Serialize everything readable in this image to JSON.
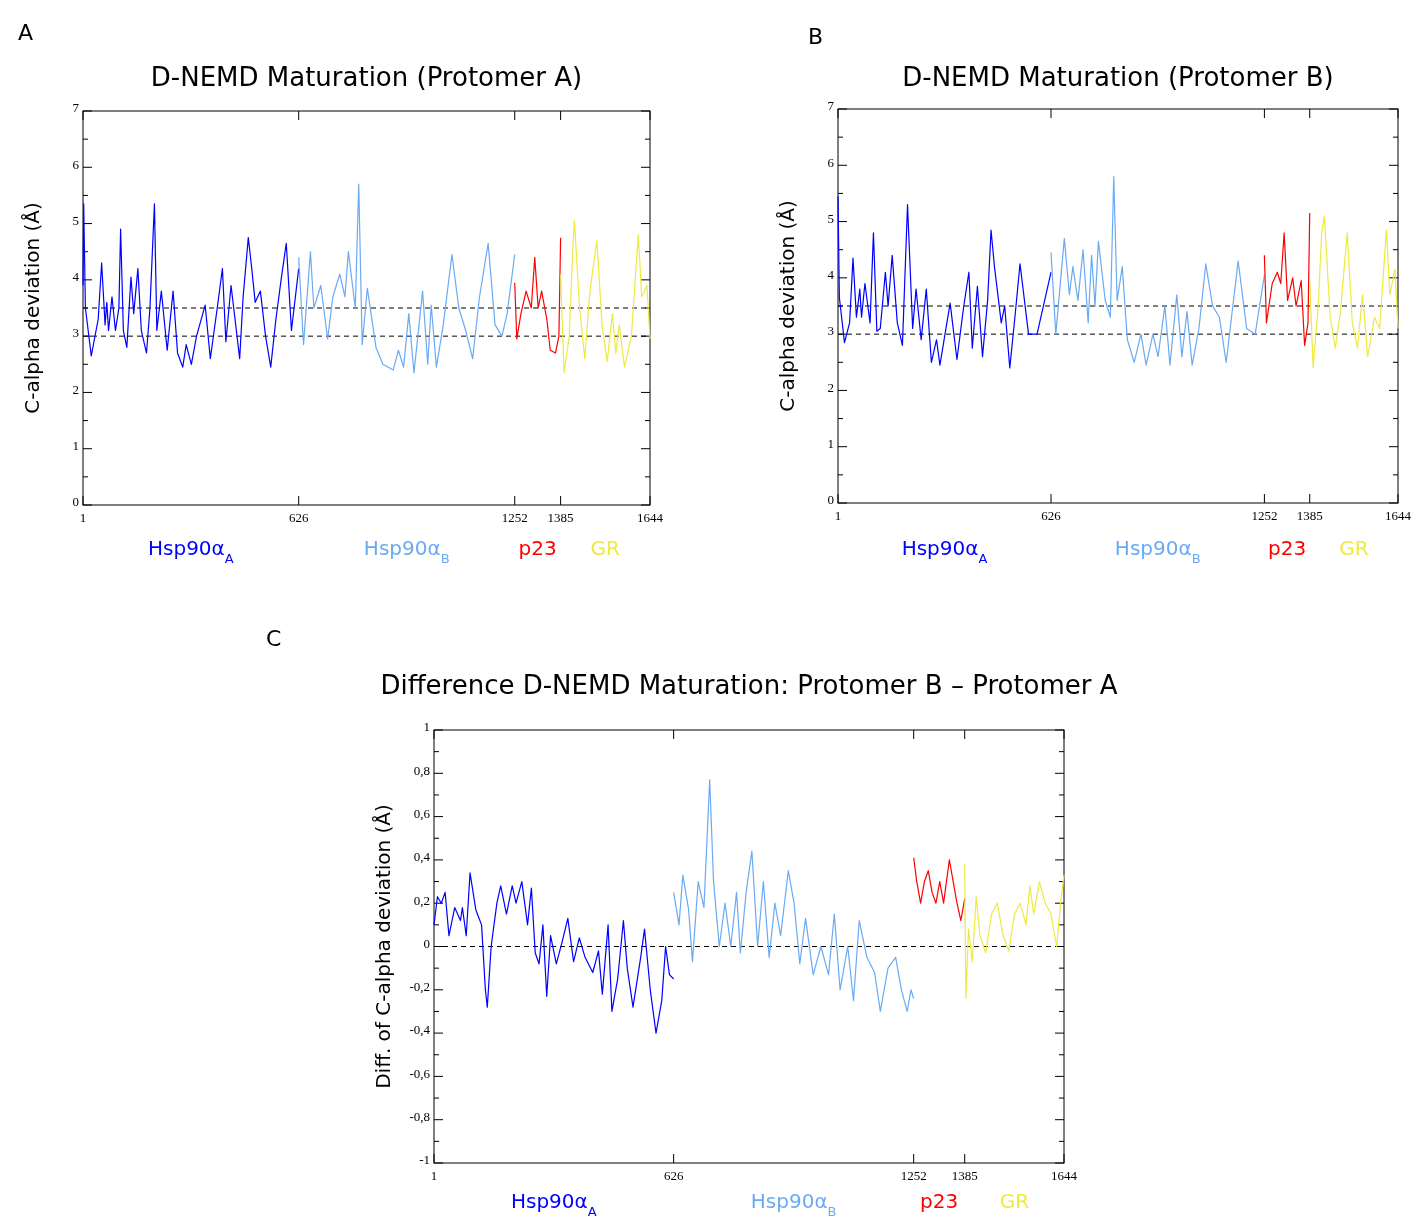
{
  "chart_data": [
    {
      "type": "line",
      "title": "D-NEMD Maturation (Protomer A)",
      "ylabel": "C-alpha deviation (Å)",
      "annotations": [
        "A"
      ],
      "legend": "bottom",
      "xlim": [
        1,
        1644
      ],
      "xticks": [
        1,
        626,
        1252,
        1385,
        1644
      ],
      "ylim": [
        0,
        7
      ],
      "yticks": [
        0,
        {
          "value": 0.5,
          "label": null
        },
        1,
        {
          "value": 1.5,
          "label": null
        },
        2,
        {
          "value": 2.5,
          "label": null
        },
        3,
        {
          "value": 3.5,
          "label": null
        },
        4,
        {
          "value": 4.5,
          "label": null
        },
        5,
        {
          "value": 5.5,
          "label": null
        },
        6,
        {
          "value": 6.5,
          "label": null
        },
        7
      ],
      "ref_lines": [
        {
          "axis": "y",
          "value": 3,
          "color": "#000000",
          "line_style": "dashed"
        },
        {
          "axis": "y",
          "value": 3.5,
          "color": "#000000",
          "line_style": "dashed"
        }
      ],
      "series": [
        {
          "name": "Hsp90α$_{A}$",
          "color": "#0000ff",
          "x": [
            1,
            3,
            8,
            25,
            45,
            55,
            65,
            70,
            75,
            85,
            95,
            105,
            110,
            118,
            128,
            140,
            148,
            160,
            170,
            185,
            195,
            208,
            215,
            228,
            245,
            262,
            275,
            290,
            300,
            315,
            330,
            355,
            370,
            390,
            405,
            415,
            430,
            455,
            465,
            480,
            490,
            500,
            515,
            530,
            545,
            560,
            575,
            590,
            605,
            626
          ],
          "values": [
            3.9,
            5.35,
            3.5,
            2.65,
            3.3,
            4.3,
            3.2,
            3.6,
            3.1,
            3.7,
            3.1,
            3.5,
            4.9,
            3.1,
            2.8,
            4.05,
            3.4,
            4.2,
            3.1,
            2.7,
            3.5,
            5.35,
            3.1,
            3.8,
            2.75,
            3.8,
            2.7,
            2.45,
            2.85,
            2.5,
            3.0,
            3.55,
            2.6,
            3.5,
            4.2,
            2.9,
            3.9,
            2.6,
            3.7,
            4.75,
            4.2,
            3.6,
            3.8,
            3.0,
            2.45,
            3.3,
            4.0,
            4.65,
            3.1,
            4.2
          ]
        },
        {
          "name": "Hsp90α$_{B}$",
          "color": "#6aaaf5",
          "x": [
            626,
            640,
            660,
            670,
            690,
            710,
            725,
            745,
            760,
            770,
            790,
            800,
            810,
            825,
            850,
            870,
            900,
            915,
            930,
            945,
            960,
            985,
            1000,
            1010,
            1025,
            1045,
            1070,
            1090,
            1110,
            1130,
            1150,
            1175,
            1195,
            1215,
            1230,
            1252
          ],
          "values": [
            4.4,
            2.85,
            4.5,
            3.5,
            3.9,
            2.95,
            3.7,
            4.1,
            3.7,
            4.5,
            3.5,
            5.7,
            2.85,
            3.85,
            2.8,
            2.5,
            2.4,
            2.75,
            2.45,
            3.4,
            2.35,
            3.8,
            2.5,
            3.55,
            2.45,
            3.2,
            4.45,
            3.5,
            3.1,
            2.6,
            3.7,
            4.65,
            3.2,
            3.0,
            3.4,
            4.45
          ]
        },
        {
          "name": "p23",
          "color": "#ff0000",
          "x": [
            1252,
            1258,
            1270,
            1285,
            1300,
            1310,
            1320,
            1330,
            1345,
            1355,
            1370,
            1380,
            1385
          ],
          "values": [
            3.95,
            2.95,
            3.4,
            3.8,
            3.5,
            4.4,
            3.5,
            3.8,
            3.3,
            2.75,
            2.7,
            3.0,
            4.75
          ]
        },
        {
          "name": "GR",
          "color": "#eeea40",
          "x": [
            1385,
            1395,
            1410,
            1420,
            1425,
            1440,
            1455,
            1470,
            1490,
            1505,
            1520,
            1535,
            1545,
            1555,
            1570,
            1590,
            1610,
            1620,
            1635,
            1644
          ],
          "values": [
            4.1,
            2.35,
            3.0,
            4.5,
            5.05,
            3.5,
            2.6,
            3.8,
            4.7,
            3.2,
            2.55,
            3.4,
            2.7,
            3.2,
            2.45,
            3.0,
            4.8,
            3.7,
            3.9,
            2.95
          ]
        }
      ]
    },
    {
      "type": "line",
      "title": "D-NEMD Maturation (Protomer B)",
      "ylabel": "C-alpha deviation (Å)",
      "annotations": [
        "B"
      ],
      "legend": "bottom",
      "xlim": [
        1,
        1644
      ],
      "xticks": [
        1,
        626,
        1252,
        1385,
        1644
      ],
      "ylim": [
        0,
        7
      ],
      "yticks": [
        0,
        {
          "value": 0.5,
          "label": null
        },
        1,
        {
          "value": 1.5,
          "label": null
        },
        2,
        {
          "value": 2.5,
          "label": null
        },
        3,
        {
          "value": 3.5,
          "label": null
        },
        4,
        {
          "value": 4.5,
          "label": null
        },
        5,
        {
          "value": 5.5,
          "label": null
        },
        6,
        {
          "value": 6.5,
          "label": null
        },
        7
      ],
      "ref_lines": [
        {
          "axis": "y",
          "value": 3,
          "color": "#000000",
          "line_style": "dashed"
        },
        {
          "axis": "y",
          "value": 3.5,
          "color": "#000000",
          "line_style": "dashed"
        }
      ],
      "series": [
        {
          "name": "Hsp90α$_{A}$",
          "color": "#0000ff",
          "x": [
            1,
            5,
            20,
            35,
            45,
            55,
            65,
            70,
            80,
            95,
            105,
            115,
            125,
            140,
            148,
            160,
            175,
            190,
            205,
            220,
            230,
            245,
            260,
            275,
            290,
            300,
            315,
            330,
            350,
            370,
            385,
            395,
            410,
            425,
            440,
            450,
            460,
            480,
            490,
            505,
            520,
            535,
            560,
            585,
            626
          ],
          "values": [
            5.45,
            3.65,
            2.85,
            3.2,
            4.35,
            3.3,
            3.8,
            3.3,
            3.9,
            3.2,
            4.8,
            3.05,
            3.1,
            4.1,
            3.5,
            4.4,
            3.2,
            2.8,
            5.3,
            3.1,
            3.8,
            2.9,
            3.8,
            2.5,
            2.9,
            2.45,
            3.0,
            3.55,
            2.55,
            3.5,
            4.1,
            2.75,
            3.85,
            2.6,
            3.6,
            4.85,
            4.2,
            3.2,
            3.5,
            2.4,
            3.3,
            4.25,
            3.0,
            3.0,
            4.1
          ]
        },
        {
          "name": "Hsp90α$_{B}$",
          "color": "#6aaaf5",
          "x": [
            626,
            640,
            665,
            680,
            690,
            705,
            720,
            735,
            745,
            755,
            765,
            785,
            800,
            810,
            820,
            835,
            850,
            870,
            890,
            905,
            925,
            940,
            960,
            975,
            995,
            1010,
            1025,
            1040,
            1060,
            1080,
            1100,
            1120,
            1140,
            1175,
            1200,
            1225,
            1252
          ],
          "values": [
            4.45,
            3.0,
            4.7,
            3.7,
            4.2,
            3.6,
            4.5,
            3.2,
            4.4,
            3.5,
            4.65,
            3.6,
            3.3,
            5.8,
            3.6,
            4.2,
            2.9,
            2.5,
            3.0,
            2.45,
            3.0,
            2.6,
            3.5,
            2.45,
            3.7,
            2.6,
            3.4,
            2.45,
            3.1,
            4.25,
            3.5,
            3.3,
            2.5,
            4.3,
            3.1,
            3.0,
            4.05
          ]
        },
        {
          "name": "p23",
          "color": "#ff0000",
          "x": [
            1252,
            1258,
            1275,
            1290,
            1300,
            1310,
            1320,
            1335,
            1345,
            1360,
            1370,
            1380,
            1385
          ],
          "values": [
            4.4,
            3.2,
            3.9,
            4.1,
            3.9,
            4.8,
            3.6,
            4.0,
            3.5,
            3.95,
            2.8,
            3.2,
            5.15
          ]
        },
        {
          "name": "GR",
          "color": "#eeea40",
          "x": [
            1385,
            1395,
            1410,
            1420,
            1428,
            1445,
            1460,
            1475,
            1495,
            1510,
            1525,
            1540,
            1555,
            1575,
            1590,
            1610,
            1620,
            1635,
            1644
          ],
          "values": [
            3.95,
            2.4,
            3.5,
            4.8,
            5.1,
            3.3,
            2.75,
            3.4,
            4.8,
            3.2,
            2.75,
            3.7,
            2.6,
            3.3,
            3.1,
            4.85,
            3.7,
            4.15,
            3.1
          ]
        }
      ]
    },
    {
      "type": "line",
      "title": "Difference D-NEMD Maturation: Protomer B – Protomer A",
      "ylabel": "Diff. of C-alpha deviation (Å)",
      "annotations": [
        "C"
      ],
      "legend": "bottom",
      "xlim": [
        1,
        1644
      ],
      "xticks": [
        1,
        626,
        1252,
        1385,
        1644
      ],
      "ylim": [
        -1,
        1
      ],
      "yticks": [
        {
          "value": -1,
          "label": "-1"
        },
        {
          "value": -0.9,
          "label": null
        },
        {
          "value": -0.8,
          "label": "-0,8"
        },
        {
          "value": -0.7,
          "label": null
        },
        {
          "value": -0.6,
          "label": "-0,6"
        },
        {
          "value": -0.5,
          "label": null
        },
        {
          "value": -0.4,
          "label": "-0,4"
        },
        {
          "value": -0.3,
          "label": null
        },
        {
          "value": -0.2,
          "label": "-0,2"
        },
        {
          "value": -0.1,
          "label": null
        },
        0,
        {
          "value": 0.1,
          "label": null
        },
        {
          "value": 0.2,
          "label": "0,2"
        },
        {
          "value": 0.3,
          "label": null
        },
        {
          "value": 0.4,
          "label": "0,4"
        },
        {
          "value": 0.5,
          "label": null
        },
        {
          "value": 0.6,
          "label": "0,6"
        },
        {
          "value": 0.7,
          "label": null
        },
        {
          "value": 0.8,
          "label": "0,8"
        },
        {
          "value": 0.9,
          "label": null
        },
        1
      ],
      "ref_lines": [
        {
          "axis": "y",
          "value": 0,
          "color": "#000000",
          "line_style": "dashed"
        }
      ],
      "series": [
        {
          "name": "Hsp90α$_{A}$",
          "color": "#0000ff",
          "x": [
            1,
            10,
            20,
            30,
            40,
            55,
            70,
            75,
            85,
            95,
            110,
            125,
            135,
            140,
            150,
            165,
            175,
            190,
            205,
            215,
            230,
            245,
            255,
            265,
            275,
            285,
            295,
            305,
            320,
            335,
            350,
            365,
            380,
            395,
            415,
            430,
            440,
            455,
            465,
            480,
            495,
            505,
            520,
            540,
            550,
            565,
            580,
            595,
            605,
            615,
            626
          ],
          "values": [
            0.1,
            0.23,
            0.2,
            0.25,
            0.05,
            0.18,
            0.12,
            0.18,
            0.05,
            0.34,
            0.17,
            0.1,
            -0.2,
            -0.28,
            0.0,
            0.2,
            0.28,
            0.15,
            0.28,
            0.2,
            0.3,
            0.1,
            0.27,
            -0.03,
            -0.08,
            0.1,
            -0.23,
            0.05,
            -0.08,
            0.02,
            0.13,
            -0.07,
            0.04,
            -0.05,
            -0.12,
            -0.02,
            -0.22,
            0.1,
            -0.3,
            -0.15,
            0.12,
            -0.1,
            -0.28,
            -0.05,
            0.08,
            -0.2,
            -0.4,
            -0.25,
            0.0,
            -0.13,
            -0.15
          ]
        },
        {
          "name": "Hsp90α$_{B}$",
          "color": "#6aaaf5",
          "x": [
            626,
            640,
            650,
            665,
            675,
            690,
            705,
            720,
            730,
            745,
            760,
            775,
            790,
            800,
            815,
            830,
            845,
            860,
            875,
            890,
            905,
            925,
            940,
            955,
            970,
            990,
            1010,
            1030,
            1045,
            1060,
            1080,
            1095,
            1110,
            1130,
            1150,
            1165,
            1185,
            1205,
            1220,
            1235,
            1245,
            1252
          ],
          "values": [
            0.25,
            0.1,
            0.33,
            0.17,
            -0.07,
            0.3,
            0.18,
            0.77,
            0.3,
            0.0,
            0.2,
            0.0,
            0.25,
            -0.03,
            0.25,
            0.44,
            0.0,
            0.3,
            -0.05,
            0.2,
            0.05,
            0.35,
            0.2,
            -0.08,
            0.13,
            -0.13,
            0.0,
            -0.13,
            0.15,
            -0.2,
            0.0,
            -0.25,
            0.12,
            -0.05,
            -0.12,
            -0.3,
            -0.1,
            -0.05,
            -0.2,
            -0.3,
            -0.2,
            -0.24
          ]
        },
        {
          "name": "p23",
          "color": "#ff0000",
          "x": [
            1252,
            1260,
            1270,
            1280,
            1290,
            1300,
            1310,
            1320,
            1330,
            1345,
            1355,
            1365,
            1375,
            1385
          ],
          "values": [
            0.41,
            0.3,
            0.2,
            0.3,
            0.35,
            0.25,
            0.2,
            0.3,
            0.2,
            0.4,
            0.3,
            0.2,
            0.12,
            0.22
          ]
        },
        {
          "name": "GR",
          "color": "#eeea40",
          "x": [
            1385,
            1388,
            1395,
            1405,
            1415,
            1425,
            1440,
            1455,
            1470,
            1485,
            1500,
            1515,
            1530,
            1545,
            1555,
            1565,
            1580,
            1595,
            1610,
            1625,
            1635,
            1644
          ],
          "values": [
            0.38,
            -0.24,
            0.08,
            -0.07,
            0.23,
            0.05,
            -0.03,
            0.15,
            0.2,
            0.05,
            -0.02,
            0.15,
            0.2,
            0.1,
            0.28,
            0.15,
            0.3,
            0.2,
            0.15,
            0.0,
            0.2,
            0.33
          ]
        }
      ]
    }
  ]
}
